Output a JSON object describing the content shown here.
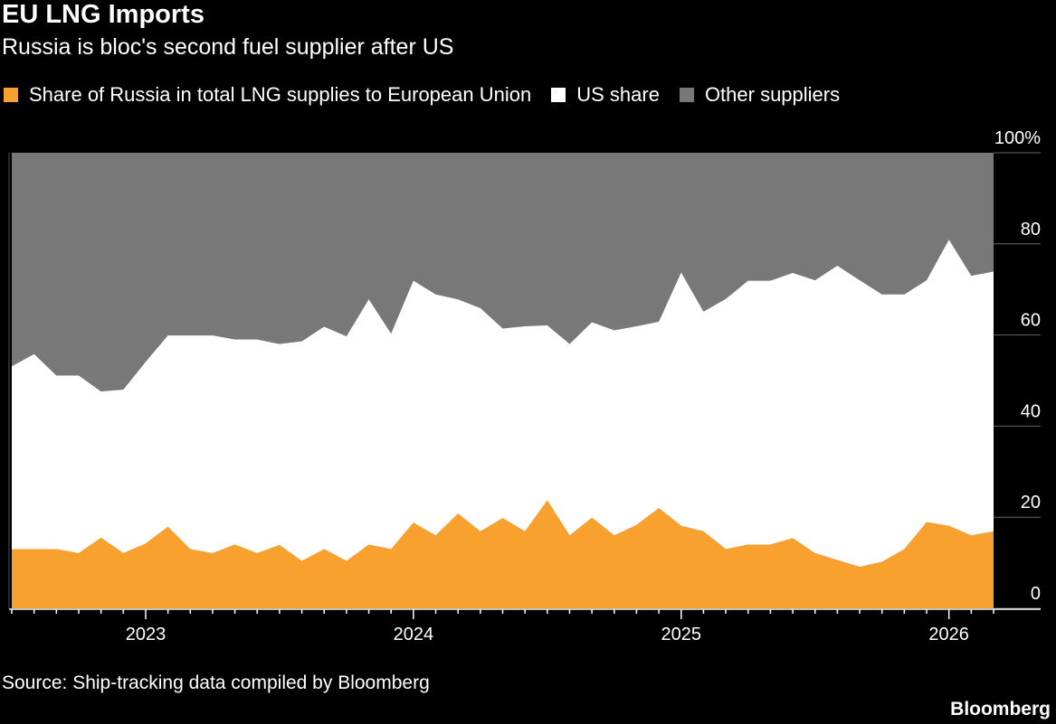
{
  "header": {
    "title": "EU LNG Imports",
    "subtitle": "Russia is bloc's second fuel supplier after US"
  },
  "footer": {
    "source": "Source: Ship-tracking data compiled by Bloomberg",
    "brand": "Bloomberg"
  },
  "chart_data": {
    "type": "area",
    "stacked": true,
    "title": "EU LNG Imports",
    "subtitle": "Russia is bloc's second fuel supplier after US",
    "xlabel": "",
    "ylabel": "",
    "ylim": [
      0,
      100
    ],
    "y_ticks": [
      0,
      20,
      40,
      60,
      80,
      100
    ],
    "y_tick_labels": [
      "0",
      "20",
      "40",
      "60",
      "80",
      "100%"
    ],
    "y_axis_side": "right",
    "x_tick_labels": [
      "2023",
      "2024",
      "2025",
      "2026"
    ],
    "x_start": "2022-07",
    "x_end": "2026-03",
    "x": [
      "2022-07",
      "2022-08",
      "2022-09",
      "2022-10",
      "2022-11",
      "2022-12",
      "2023-01",
      "2023-02",
      "2023-03",
      "2023-04",
      "2023-05",
      "2023-06",
      "2023-07",
      "2023-08",
      "2023-09",
      "2023-10",
      "2023-11",
      "2023-12",
      "2024-01",
      "2024-02",
      "2024-03",
      "2024-04",
      "2024-05",
      "2024-06",
      "2024-07",
      "2024-08",
      "2024-09",
      "2024-10",
      "2024-11",
      "2024-12",
      "2025-01",
      "2025-02",
      "2025-03",
      "2025-04",
      "2025-05",
      "2025-06",
      "2025-07",
      "2025-08",
      "2025-09",
      "2025-10",
      "2025-11",
      "2025-12",
      "2026-01",
      "2026-02",
      "2026-03"
    ],
    "legend_position": "top-left",
    "series": [
      {
        "name": "Share of Russia in total LNG supplies to European Union",
        "color": "#F9A12E",
        "values": [
          13,
          13,
          13,
          12.1,
          15.5,
          12.1,
          14.2,
          17.9,
          13,
          12.1,
          14,
          12.1,
          13.9,
          10.4,
          13,
          10.4,
          14,
          13,
          18.8,
          16,
          20.8,
          16.9,
          19.8,
          16.9,
          23.7,
          16,
          19.9,
          16,
          18.3,
          22,
          18.1,
          16.9,
          13,
          14,
          14,
          15.4,
          12.1,
          10.6,
          9.1,
          10.2,
          13,
          18.9,
          18.1,
          16,
          16.9
        ]
      },
      {
        "name": "US share",
        "color": "#FFFFFF",
        "values": [
          40.1,
          42.8,
          38.1,
          39,
          32.1,
          35.9,
          39.9,
          42,
          46.9,
          47.8,
          45,
          46.9,
          44.1,
          48.2,
          48.8,
          49.3,
          53.8,
          47.3,
          53.1,
          52.9,
          47,
          49,
          41.6,
          45,
          38.4,
          42,
          42.9,
          45,
          43.6,
          40.9,
          55.6,
          48.2,
          54.9,
          57.9,
          57.9,
          58.2,
          59.9,
          64.6,
          62.9,
          58.7,
          55.9,
          53.1,
          62.8,
          57,
          57
        ]
      },
      {
        "name": "Other suppliers",
        "color": "#787878",
        "values": "remainder to 100"
      }
    ]
  }
}
